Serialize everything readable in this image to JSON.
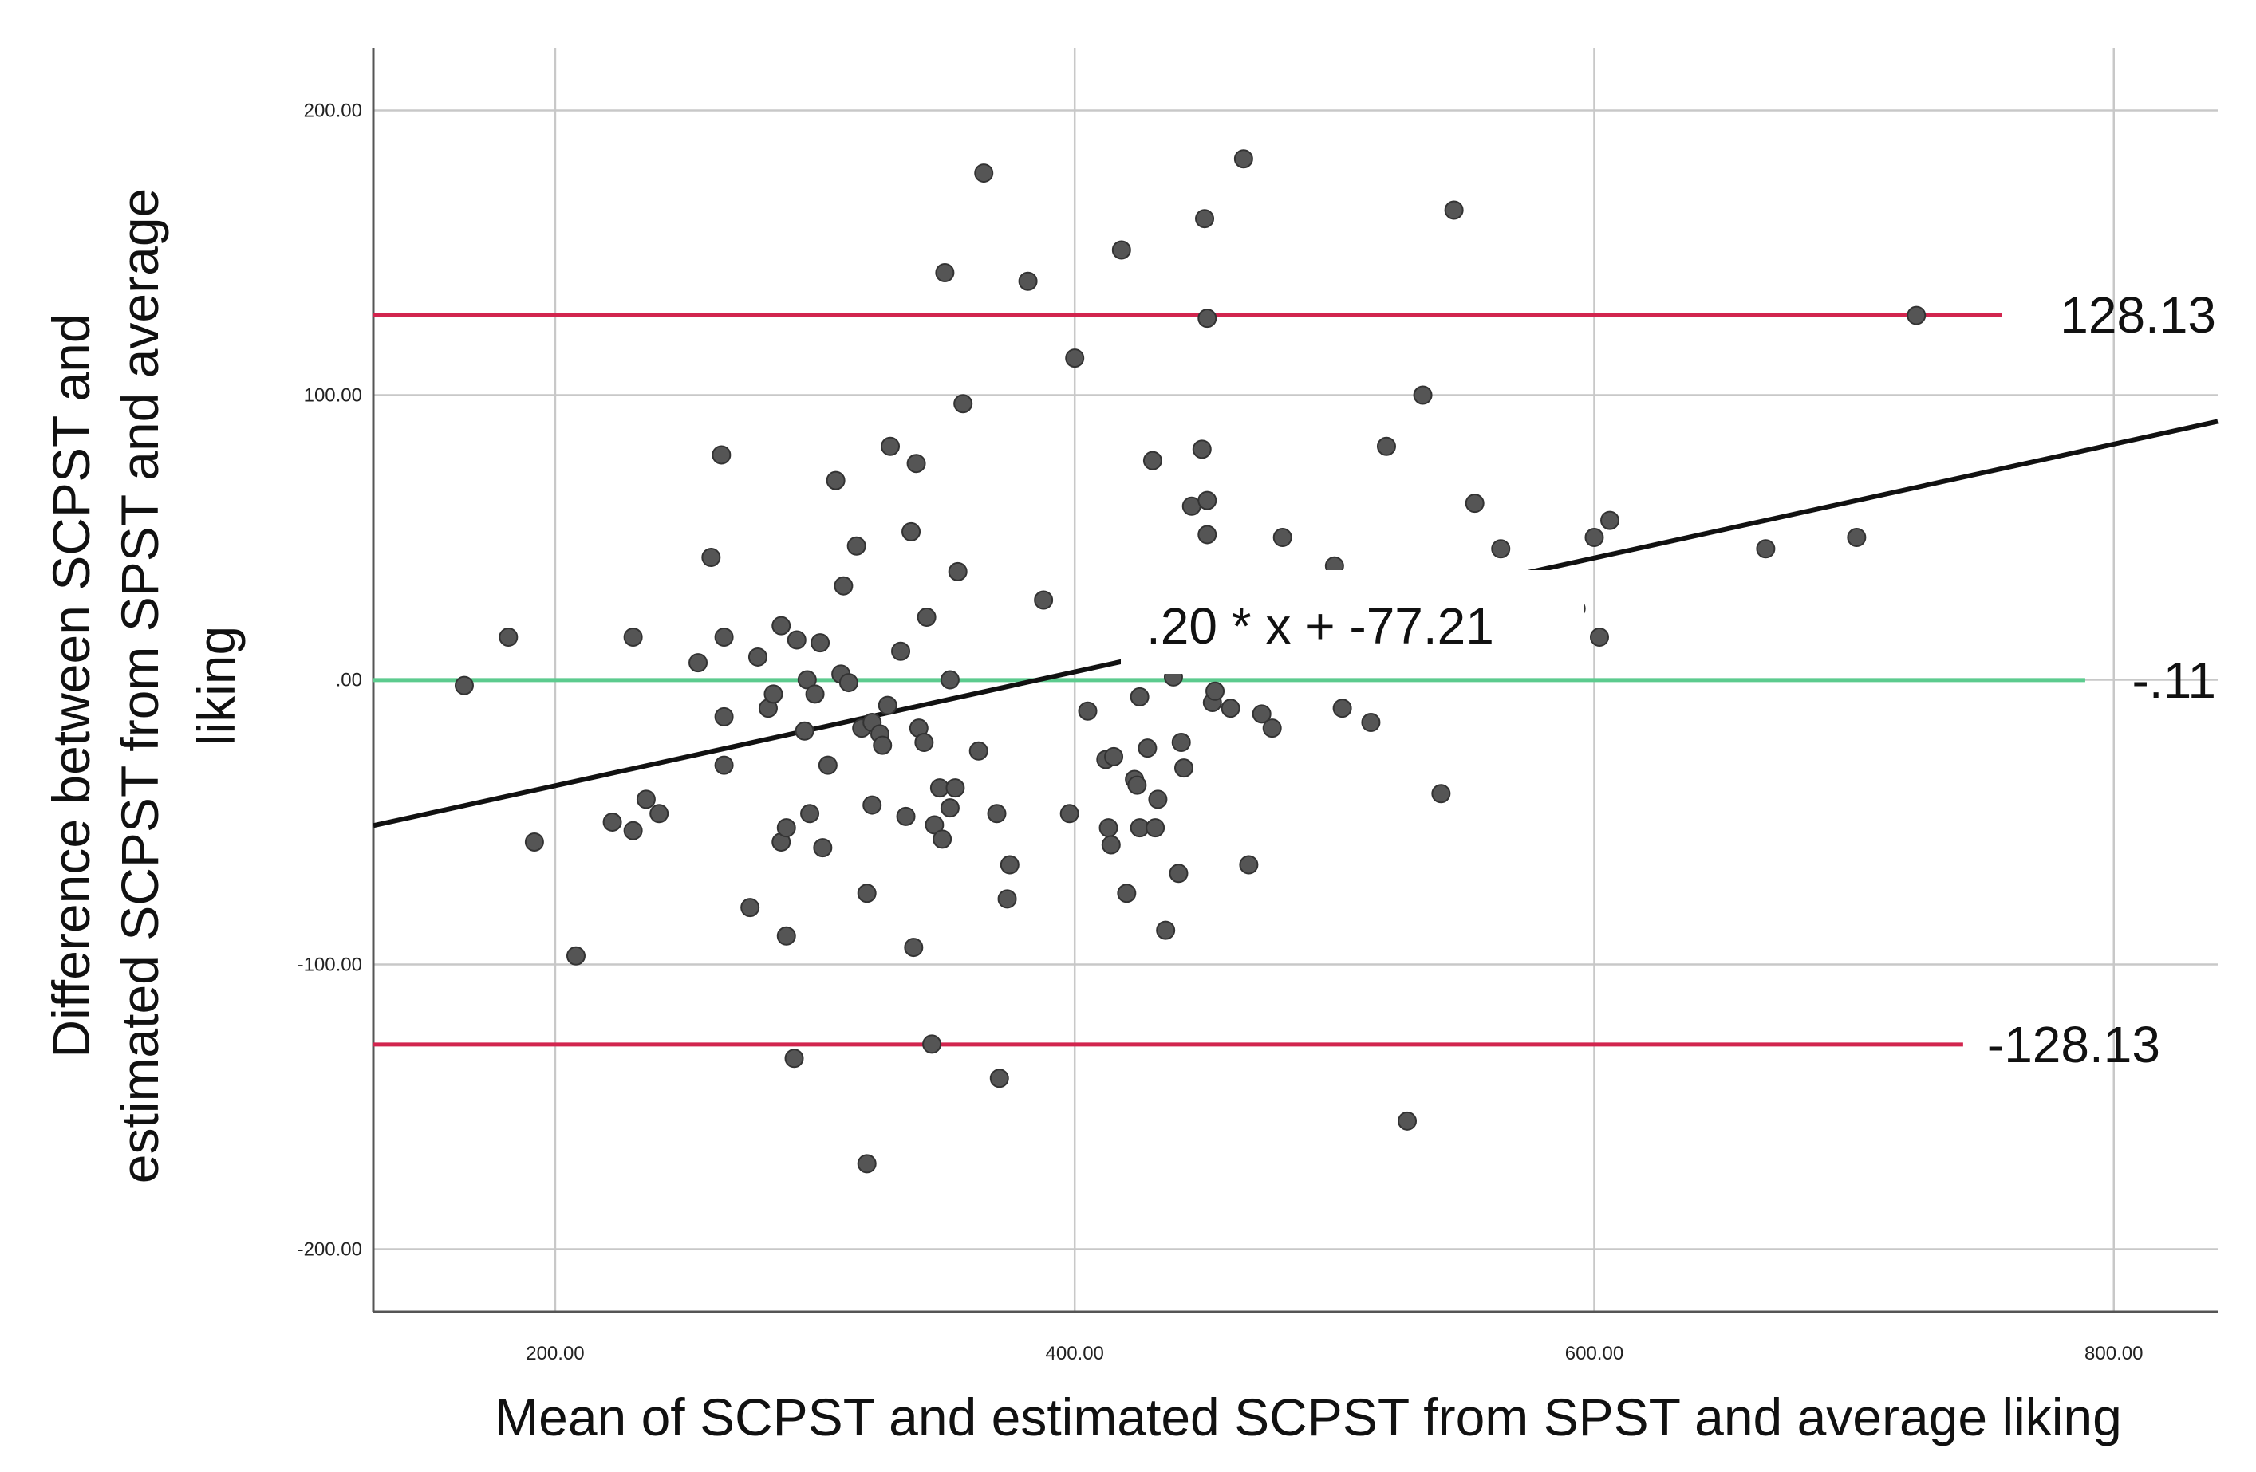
{
  "chart_data": {
    "type": "scatter",
    "xlabel": "Mean of SCPST and estimated SCPST from SPST and average liking",
    "ylabel_lines": [
      "Difference between SCPST and",
      "estimated SCPST from SPST and average",
      "liking"
    ],
    "xlim": [
      130,
      840
    ],
    "ylim": [
      -222,
      222
    ],
    "x_ticks": [
      200,
      400,
      600,
      800
    ],
    "x_tick_labels": [
      "200.00",
      "400.00",
      "600.00",
      "800.00"
    ],
    "y_ticks": [
      200,
      100,
      0,
      -100,
      -200
    ],
    "y_tick_labels": [
      "200.00",
      "100.00",
      ".00",
      "-100.00",
      "-200.00"
    ],
    "grid": true,
    "reference_lines": [
      {
        "y": 128.13,
        "label": "128.13",
        "color": "#d2254e",
        "x_end": 757
      },
      {
        "y": -0.11,
        "label": "-.11",
        "color": "#5ccb8e",
        "x_end": 789
      },
      {
        "y": -128.13,
        "label": "-128.13",
        "color": "#d2254e",
        "x_end": 742
      }
    ],
    "fit_line": {
      "slope": 0.2,
      "intercept": -77.21,
      "label": ".20 * x + -77.21",
      "x_range": [
        130,
        840
      ]
    },
    "points_color": "#555555",
    "points": [
      [
        165,
        -2
      ],
      [
        182,
        15
      ],
      [
        192,
        -57
      ],
      [
        208,
        -97
      ],
      [
        222,
        -50
      ],
      [
        230,
        15
      ],
      [
        230,
        -53
      ],
      [
        235,
        -42
      ],
      [
        240,
        -47
      ],
      [
        255,
        6
      ],
      [
        260,
        43
      ],
      [
        264,
        79
      ],
      [
        265,
        15
      ],
      [
        265,
        -13
      ],
      [
        265,
        -30
      ],
      [
        275,
        -80
      ],
      [
        278,
        8
      ],
      [
        282,
        -10
      ],
      [
        284,
        -5
      ],
      [
        287,
        19
      ],
      [
        287,
        -57
      ],
      [
        289,
        -52
      ],
      [
        289,
        -90
      ],
      [
        292,
        -133
      ],
      [
        293,
        14
      ],
      [
        296,
        -18
      ],
      [
        297,
        0
      ],
      [
        298,
        -47
      ],
      [
        300,
        -5
      ],
      [
        302,
        13
      ],
      [
        303,
        -59
      ],
      [
        305,
        -30
      ],
      [
        308,
        70
      ],
      [
        310,
        2
      ],
      [
        311,
        33
      ],
      [
        313,
        -1
      ],
      [
        316,
        47
      ],
      [
        318,
        -17
      ],
      [
        320,
        -75
      ],
      [
        320,
        -170
      ],
      [
        322,
        -15
      ],
      [
        322,
        -44
      ],
      [
        325,
        -19
      ],
      [
        326,
        -23
      ],
      [
        328,
        -9
      ],
      [
        329,
        82
      ],
      [
        333,
        10
      ],
      [
        335,
        -48
      ],
      [
        337,
        52
      ],
      [
        338,
        -94
      ],
      [
        339,
        76
      ],
      [
        340,
        -17
      ],
      [
        342,
        -22
      ],
      [
        343,
        22
      ],
      [
        345,
        -128
      ],
      [
        346,
        -51
      ],
      [
        348,
        -38
      ],
      [
        349,
        -56
      ],
      [
        350,
        143
      ],
      [
        352,
        0
      ],
      [
        352,
        -45
      ],
      [
        354,
        -38
      ],
      [
        355,
        38
      ],
      [
        357,
        97
      ],
      [
        363,
        -25
      ],
      [
        365,
        178
      ],
      [
        370,
        -47
      ],
      [
        371,
        -140
      ],
      [
        374,
        -77
      ],
      [
        375,
        -65
      ],
      [
        382,
        140
      ],
      [
        388,
        28
      ],
      [
        398,
        -47
      ],
      [
        400,
        113
      ],
      [
        405,
        -11
      ],
      [
        412,
        -28
      ],
      [
        413,
        -52
      ],
      [
        414,
        -58
      ],
      [
        415,
        -27
      ],
      [
        418,
        151
      ],
      [
        420,
        -75
      ],
      [
        423,
        -35
      ],
      [
        424,
        -37
      ],
      [
        425,
        -6
      ],
      [
        425,
        -52
      ],
      [
        428,
        -24
      ],
      [
        430,
        77
      ],
      [
        431,
        -52
      ],
      [
        432,
        -42
      ],
      [
        435,
        -88
      ],
      [
        438,
        1
      ],
      [
        440,
        -68
      ],
      [
        441,
        -22
      ],
      [
        442,
        -31
      ],
      [
        445,
        61
      ],
      [
        449,
        81
      ],
      [
        450,
        162
      ],
      [
        451,
        63
      ],
      [
        451,
        51
      ],
      [
        451,
        127
      ],
      [
        452,
        28
      ],
      [
        453,
        -8
      ],
      [
        454,
        -4
      ],
      [
        460,
        -10
      ],
      [
        465,
        183
      ],
      [
        467,
        -65
      ],
      [
        472,
        -12
      ],
      [
        476,
        -17
      ],
      [
        480,
        50
      ],
      [
        483,
        30
      ],
      [
        492,
        20
      ],
      [
        500,
        40
      ],
      [
        503,
        -10
      ],
      [
        514,
        -15
      ],
      [
        520,
        82
      ],
      [
        528,
        -155
      ],
      [
        534,
        100
      ],
      [
        541,
        -40
      ],
      [
        546,
        165
      ],
      [
        554,
        62
      ],
      [
        564,
        46
      ],
      [
        593,
        25
      ],
      [
        600,
        50
      ],
      [
        602,
        15
      ],
      [
        606,
        56
      ],
      [
        666,
        46
      ],
      [
        701,
        50
      ],
      [
        724,
        128
      ]
    ]
  }
}
